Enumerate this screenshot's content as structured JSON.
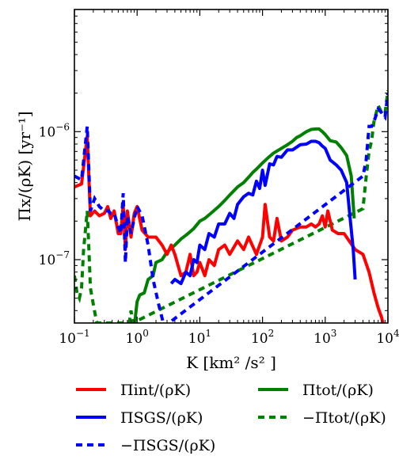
{
  "chart_data": {
    "type": "line",
    "xscale": "log",
    "yscale": "log",
    "xlim": [
      0.1,
      10000
    ],
    "ylim": [
      3.2e-08,
      9e-06
    ],
    "grid": false,
    "legend_placement": "below plot",
    "xlabel": "K [km² /s² ]",
    "ylabel": "Πx/(ρK) [yr⁻¹]",
    "x_ticks": [
      0.1,
      1,
      10,
      100,
      1000,
      10000
    ],
    "x_tick_labels": [
      {
        "base": "10",
        "exp": "−1"
      },
      {
        "base": "10",
        "exp": "0"
      },
      {
        "base": "10",
        "exp": "1"
      },
      {
        "base": "10",
        "exp": "2"
      },
      {
        "base": "10",
        "exp": "3"
      },
      {
        "base": "10",
        "exp": "4"
      }
    ],
    "y_ticks": [
      1e-07,
      1e-06
    ],
    "y_tick_labels": [
      {
        "base": "10",
        "exp": "−7"
      },
      {
        "base": "10",
        "exp": "−6"
      }
    ],
    "series": [
      {
        "name": "Πint/(ρK)",
        "color": "#ff0000",
        "style": "solid",
        "points": [
          [
            0.1,
            3.7e-07
          ],
          [
            0.13,
            3.9e-07
          ],
          [
            0.16,
            9.2e-07
          ],
          [
            0.18,
            2.2e-07
          ],
          [
            0.21,
            2.4e-07
          ],
          [
            0.25,
            2.2e-07
          ],
          [
            0.3,
            2.3e-07
          ],
          [
            0.34,
            2.6e-07
          ],
          [
            0.38,
            2.1e-07
          ],
          [
            0.43,
            2.4e-07
          ],
          [
            0.5,
            1.6e-07
          ],
          [
            0.55,
            1.6e-07
          ],
          [
            0.6,
            2.7e-07
          ],
          [
            0.65,
            1.2e-07
          ],
          [
            0.7,
            2.4e-07
          ],
          [
            0.8,
            1.5e-07
          ],
          [
            0.9,
            2.3e-07
          ],
          [
            1.0,
            2.6e-07
          ],
          [
            1.2,
            1.7e-07
          ],
          [
            1.5,
            1.5e-07
          ],
          [
            2.0,
            1.5e-07
          ],
          [
            2.5,
            1.3e-07
          ],
          [
            3.0,
            1.1e-07
          ],
          [
            3.5,
            1.3e-07
          ],
          [
            4.0,
            1.1e-07
          ],
          [
            4.5,
            9e-08
          ],
          [
            5.0,
            7.5e-08
          ],
          [
            6.0,
            8e-08
          ],
          [
            7.0,
            1.1e-07
          ],
          [
            8.0,
            7.5e-08
          ],
          [
            9.0,
            8e-08
          ],
          [
            10,
            9.5e-08
          ],
          [
            12,
            7.5e-08
          ],
          [
            14,
            1e-07
          ],
          [
            17,
            9e-08
          ],
          [
            20,
            1.2e-07
          ],
          [
            25,
            1.3e-07
          ],
          [
            30,
            1.1e-07
          ],
          [
            40,
            1.4e-07
          ],
          [
            50,
            1.2e-07
          ],
          [
            60,
            1.5e-07
          ],
          [
            80,
            1.1e-07
          ],
          [
            100,
            1.5e-07
          ],
          [
            110,
            2.7e-07
          ],
          [
            130,
            1.5e-07
          ],
          [
            150,
            1.4e-07
          ],
          [
            170,
            2.1e-07
          ],
          [
            200,
            1.4e-07
          ],
          [
            250,
            1.5e-07
          ],
          [
            300,
            1.7e-07
          ],
          [
            400,
            1.8e-07
          ],
          [
            500,
            1.8e-07
          ],
          [
            600,
            1.9e-07
          ],
          [
            700,
            1.8e-07
          ],
          [
            800,
            1.9e-07
          ],
          [
            900,
            2.2e-07
          ],
          [
            1000,
            1.8e-07
          ],
          [
            1100,
            2.4e-07
          ],
          [
            1300,
            1.7e-07
          ],
          [
            1600,
            1.6e-07
          ],
          [
            2000,
            1.6e-07
          ],
          [
            3000,
            1.2e-07
          ],
          [
            4000,
            1.1e-07
          ],
          [
            5000,
            8e-08
          ],
          [
            6000,
            5.5e-08
          ],
          [
            7000,
            4.2e-08
          ],
          [
            8000,
            3.5e-08
          ],
          [
            8500,
            3e-08
          ]
        ]
      },
      {
        "name": "ΠSGS/(ρK)",
        "color": "#0000ff",
        "style": "solid",
        "points": [
          [
            3.5,
            6.5e-08
          ],
          [
            4.0,
            7e-08
          ],
          [
            5.0,
            6.5e-08
          ],
          [
            6.0,
            8e-08
          ],
          [
            7.0,
            7.5e-08
          ],
          [
            8.0,
            1e-07
          ],
          [
            9.0,
            9.5e-08
          ],
          [
            10,
            1.3e-07
          ],
          [
            12,
            1.2e-07
          ],
          [
            14,
            1.6e-07
          ],
          [
            17,
            1.5e-07
          ],
          [
            20,
            1.9e-07
          ],
          [
            25,
            1.9e-07
          ],
          [
            30,
            2.3e-07
          ],
          [
            35,
            2.1e-07
          ],
          [
            40,
            2.7e-07
          ],
          [
            50,
            3.1e-07
          ],
          [
            60,
            3.3e-07
          ],
          [
            70,
            3.2e-07
          ],
          [
            80,
            4.1e-07
          ],
          [
            90,
            3.6e-07
          ],
          [
            100,
            5e-07
          ],
          [
            110,
            3.8e-07
          ],
          [
            130,
            5.6e-07
          ],
          [
            150,
            5.5e-07
          ],
          [
            170,
            6.4e-07
          ],
          [
            200,
            6.3e-07
          ],
          [
            250,
            7.2e-07
          ],
          [
            300,
            7.2e-07
          ],
          [
            400,
            7.9e-07
          ],
          [
            500,
            8e-07
          ],
          [
            600,
            8.4e-07
          ],
          [
            700,
            8.4e-07
          ],
          [
            800,
            8.2e-07
          ],
          [
            900,
            7.7e-07
          ],
          [
            1000,
            7.4e-07
          ],
          [
            1200,
            6e-07
          ],
          [
            1500,
            5.5e-07
          ],
          [
            1800,
            5e-07
          ],
          [
            2200,
            4e-07
          ],
          [
            2500,
            2.1e-07
          ],
          [
            2800,
            1.2e-07
          ],
          [
            3000,
            7e-08
          ]
        ]
      },
      {
        "name": "−ΠSGS/(ρK)",
        "color": "#0000ff",
        "style": "dashed",
        "points": [
          [
            0.1,
            4.5e-07
          ],
          [
            0.13,
            4.2e-07
          ],
          [
            0.16,
            1.1e-06
          ],
          [
            0.18,
            2.4e-07
          ],
          [
            0.21,
            3e-07
          ],
          [
            0.25,
            2.6e-07
          ],
          [
            0.3,
            2.4e-07
          ],
          [
            0.35,
            2.4e-07
          ],
          [
            0.38,
            2.3e-07
          ],
          [
            0.43,
            2.3e-07
          ],
          [
            0.5,
            1.8e-07
          ],
          [
            0.55,
            1.6e-07
          ],
          [
            0.6,
            3.3e-07
          ],
          [
            0.65,
            9.5e-08
          ],
          [
            0.7,
            2.2e-07
          ],
          [
            0.8,
            1.6e-07
          ],
          [
            0.9,
            2.1e-07
          ],
          [
            1.0,
            2.6e-07
          ],
          [
            1.2,
            2.2e-07
          ],
          [
            1.5,
            1.3e-07
          ],
          [
            1.8,
            7e-08
          ],
          [
            2.2,
            4.5e-08
          ],
          [
            2.5,
            3.5e-08
          ],
          [
            2.7,
            3e-08
          ],
          [
            4000,
            4.5e-07
          ],
          [
            4500,
            6e-07
          ],
          [
            5000,
            1.1e-06
          ],
          [
            5500,
            1.1e-06
          ],
          [
            6000,
            1.2e-06
          ],
          [
            7000,
            1.5e-06
          ],
          [
            8000,
            1.4e-06
          ],
          [
            9000,
            1.3e-06
          ],
          [
            10000,
            2e-06
          ]
        ]
      },
      {
        "name": "Πtot/(ρK)",
        "color": "#008000",
        "style": "solid",
        "points": [
          [
            0.9,
            3e-08
          ],
          [
            1.0,
            4.7e-08
          ],
          [
            1.1,
            5.3e-08
          ],
          [
            1.3,
            5.5e-08
          ],
          [
            1.5,
            7e-08
          ],
          [
            1.8,
            7.5e-08
          ],
          [
            2.0,
            9.5e-08
          ],
          [
            2.5,
            1e-07
          ],
          [
            3.0,
            1.15e-07
          ],
          [
            4.0,
            1.3e-07
          ],
          [
            5.0,
            1.45e-07
          ],
          [
            6.0,
            1.55e-07
          ],
          [
            7.0,
            1.65e-07
          ],
          [
            8.0,
            1.75e-07
          ],
          [
            10,
            2e-07
          ],
          [
            12,
            2.1e-07
          ],
          [
            15,
            2.3e-07
          ],
          [
            20,
            2.6e-07
          ],
          [
            25,
            2.9e-07
          ],
          [
            30,
            3.2e-07
          ],
          [
            40,
            3.7e-07
          ],
          [
            50,
            4e-07
          ],
          [
            60,
            4.4e-07
          ],
          [
            70,
            4.8e-07
          ],
          [
            80,
            5.1e-07
          ],
          [
            100,
            5.7e-07
          ],
          [
            120,
            6.2e-07
          ],
          [
            150,
            6.8e-07
          ],
          [
            200,
            7.4e-07
          ],
          [
            250,
            7.9e-07
          ],
          [
            300,
            8.4e-07
          ],
          [
            350,
            9e-07
          ],
          [
            400,
            9.3e-07
          ],
          [
            500,
            1e-06
          ],
          [
            600,
            1.04e-06
          ],
          [
            700,
            1.05e-06
          ],
          [
            800,
            1.05e-06
          ],
          [
            900,
            1e-06
          ],
          [
            1000,
            9.5e-07
          ],
          [
            1200,
            8.5e-07
          ],
          [
            1500,
            8.3e-07
          ],
          [
            1800,
            7.5e-07
          ],
          [
            2200,
            6.5e-07
          ],
          [
            2600,
            4.5e-07
          ],
          [
            2900,
            2.1e-07
          ]
        ]
      },
      {
        "name": "−Πtot/(ρK)",
        "color": "#008000",
        "style": "dashed",
        "points": [
          [
            0.1,
            7.5e-08
          ],
          [
            0.11,
            5.5e-08
          ],
          [
            0.12,
            5e-08
          ],
          [
            0.13,
            6e-08
          ],
          [
            0.14,
            1.2e-07
          ],
          [
            0.16,
            2.4e-07
          ],
          [
            0.17,
            1.2e-07
          ],
          [
            0.18,
            6e-08
          ],
          [
            0.2,
            4.5e-08
          ],
          [
            0.22,
            3.5e-08
          ],
          [
            0.23,
            3.2e-08
          ],
          [
            0.75,
            3.2e-08
          ],
          [
            0.8,
            4e-08
          ],
          [
            0.85,
            3.2e-08
          ],
          [
            4000,
            2.5e-07
          ],
          [
            4200,
            3.2e-07
          ],
          [
            4500,
            4.4e-07
          ],
          [
            5000,
            7e-07
          ],
          [
            5500,
            8.5e-07
          ],
          [
            6000,
            1.2e-06
          ],
          [
            7000,
            1.6e-06
          ],
          [
            8000,
            1.4e-06
          ],
          [
            9000,
            1.4e-06
          ],
          [
            10000,
            2.1e-06
          ]
        ]
      }
    ]
  }
}
